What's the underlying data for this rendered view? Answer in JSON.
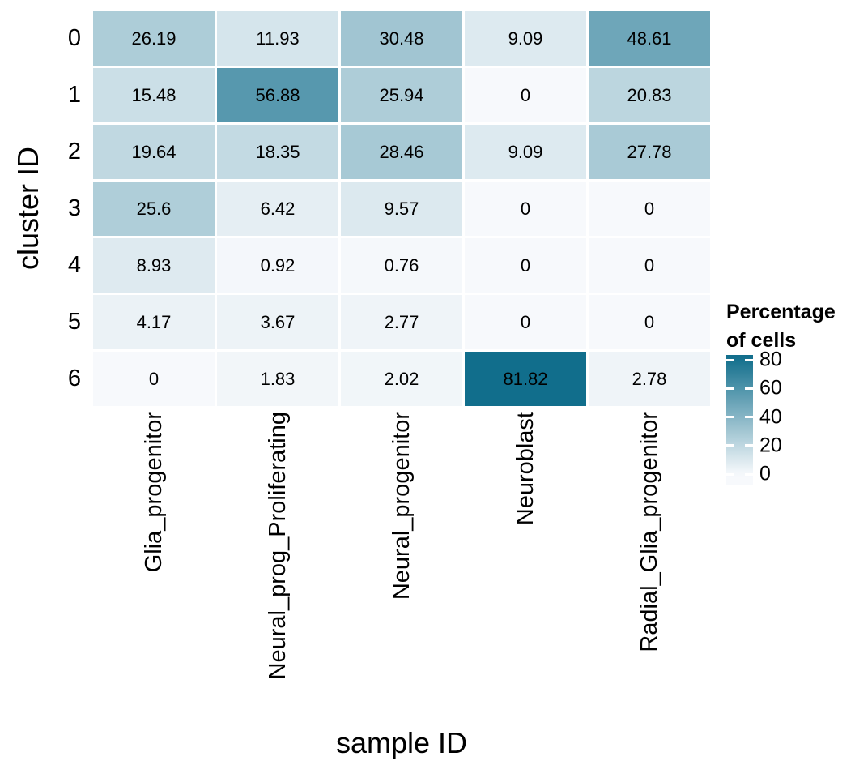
{
  "chart_data": {
    "type": "heatmap",
    "xlabel": "sample ID",
    "ylabel": "cluster ID",
    "x_categories": [
      "Glia_progenitor",
      "Neural_prog_Proliferating",
      "Neural_progenitor",
      "Neuroblast",
      "Radial_Glia_progenitor"
    ],
    "y_categories": [
      "0",
      "1",
      "2",
      "3",
      "4",
      "5",
      "6"
    ],
    "values": [
      [
        26.19,
        11.93,
        30.48,
        9.09,
        48.61
      ],
      [
        15.48,
        56.88,
        25.94,
        0,
        20.83
      ],
      [
        19.64,
        18.35,
        28.46,
        9.09,
        27.78
      ],
      [
        25.6,
        6.42,
        9.57,
        0,
        0
      ],
      [
        8.93,
        0.92,
        0.76,
        0,
        0
      ],
      [
        4.17,
        3.67,
        2.77,
        0,
        0
      ],
      [
        0,
        1.83,
        2.02,
        81.82,
        2.78
      ]
    ],
    "legend": {
      "title_lines": [
        "Percentage",
        "of cells"
      ],
      "ticks": [
        80,
        60,
        40,
        20,
        0
      ],
      "position": "right"
    },
    "colors": {
      "low": "#f7f9fc",
      "high": "#116e8c",
      "cell_gap": "#ffffff",
      "text": "#000000",
      "domain": [
        0,
        81.82
      ]
    },
    "grid": false,
    "layout": "rows = cluster ID 0-6 top to bottom, columns = sample ID left to right, x tick labels rotated 90deg reading bottom-to-top"
  }
}
